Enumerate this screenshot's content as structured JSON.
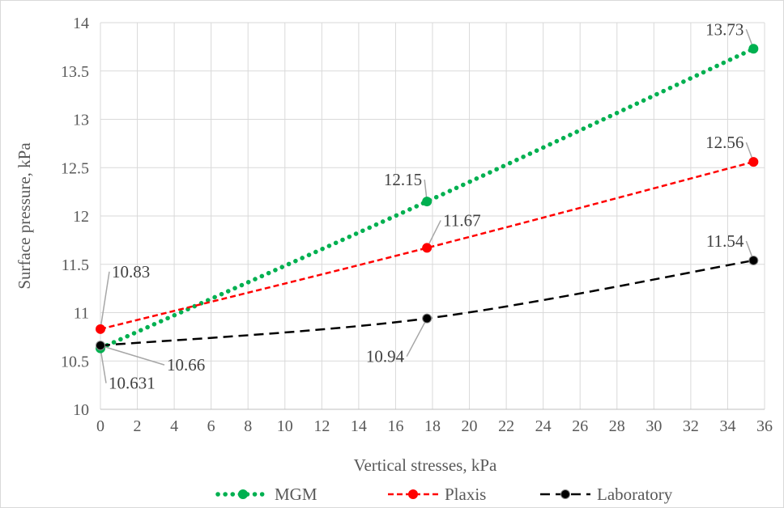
{
  "chart_data": {
    "type": "line",
    "xlabel": "Vertical stresses, kPa",
    "ylabel": "Surface pressure, kPa",
    "xlim": [
      0,
      36
    ],
    "ylim": [
      10,
      14
    ],
    "xticks": [
      0,
      2,
      4,
      6,
      8,
      10,
      12,
      14,
      16,
      18,
      20,
      22,
      24,
      26,
      28,
      30,
      32,
      34,
      36
    ],
    "yticks": [
      10,
      10.5,
      11,
      11.5,
      12,
      12.5,
      13,
      13.5,
      14
    ],
    "xtick_labels": [
      "0",
      "2",
      "4",
      "6",
      "8",
      "10",
      "12",
      "14",
      "16",
      "18",
      "20",
      "22",
      "24",
      "26",
      "28",
      "30",
      "32",
      "34",
      "36"
    ],
    "ytick_labels": [
      "10",
      "10.5",
      "11",
      "11.5",
      "12",
      "12.5",
      "13",
      "13.5",
      "14"
    ],
    "grid": true,
    "legend_position": "bottom",
    "series": [
      {
        "name": "MGM",
        "color": "#00b050",
        "style": "dotted",
        "x": [
          0,
          17.7,
          35.4
        ],
        "y": [
          10.631,
          12.15,
          13.73
        ],
        "labels": [
          "10.631",
          "12.15",
          "13.73"
        ]
      },
      {
        "name": "Plaxis",
        "color": "#ff0000",
        "style": "dashed",
        "x": [
          0,
          17.7,
          35.4
        ],
        "y": [
          10.83,
          11.67,
          12.56
        ],
        "labels": [
          "10.83",
          "11.67",
          "12.56"
        ]
      },
      {
        "name": "Laboratory",
        "color": "#000000",
        "style": "long-dash",
        "x": [
          0,
          17.7,
          35.4
        ],
        "y": [
          10.66,
          10.94,
          11.54
        ],
        "labels": [
          "10.66",
          "10.94",
          "11.54"
        ]
      }
    ]
  }
}
